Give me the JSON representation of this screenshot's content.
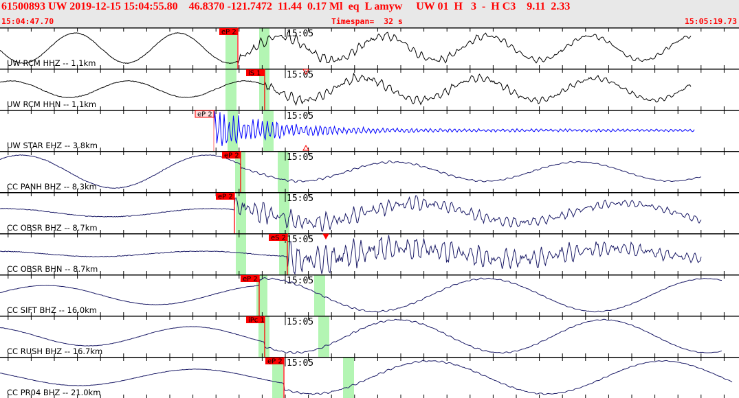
{
  "header": {
    "event_line": "61500893 UW 2019-12-15 15:04:55.80    46.8370 -121.7472  11.44  0.17 Ml  eq  L amyw     UW 01  H   3  -  H C3    9.11  2.33",
    "start_time": "15:04:47.70",
    "timespan": "Timespan=  32 s",
    "end_time": "15:05:19.73"
  },
  "colors": {
    "header_text": "#ff0000",
    "pick": "#ff0000",
    "band": "#b3f5b3",
    "trace_black": "#000000",
    "trace_blue": "#0000ff",
    "trace_navy": "#1a1a66"
  },
  "minute_label": "15:05",
  "channels": [
    {
      "label": "UW RCM HHZ -- 1.1km",
      "pick": "eP 2",
      "trace_color": "#000000"
    },
    {
      "label": "UW RCM HHN -- 1.1km",
      "pick": "iS 1",
      "trace_color": "#000000"
    },
    {
      "label": "UW STAR EHZ -- 3.8km",
      "pick": "eP 2",
      "trace_color": "#0000ff",
      "pick_style": "outline"
    },
    {
      "label": "CC PANH BHZ -- 8.3km",
      "pick": "eP 2",
      "trace_color": "#1a1a66"
    },
    {
      "label": "CC OBSR BHZ -- 8.7km",
      "pick": "eP 2",
      "trace_color": "#1a1a66"
    },
    {
      "label": "CC OBSR BHN -- 8.7km",
      "pick": "eS 2",
      "trace_color": "#1a1a66"
    },
    {
      "label": "CC SIFT BHZ -- 16.0km",
      "pick": "eP 2",
      "trace_color": "#1a1a66"
    },
    {
      "label": "CC RUSH BHZ -- 16.7km",
      "pick": "iPc 1",
      "trace_color": "#1a1a66"
    },
    {
      "label": "CC PR04 BHZ -- 21.0km",
      "pick": "eP 2",
      "trace_color": "#1a1a66"
    }
  ]
}
